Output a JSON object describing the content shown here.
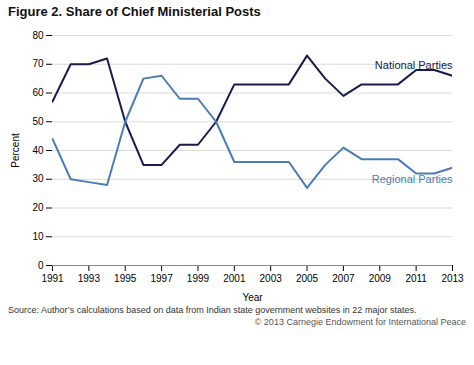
{
  "chart_data": {
    "type": "line",
    "title": "Figure 2. Share of Chief Ministerial Posts",
    "x": [
      1991,
      1992,
      1993,
      1994,
      1995,
      1996,
      1997,
      1998,
      1999,
      2000,
      2001,
      2002,
      2003,
      2004,
      2005,
      2006,
      2007,
      2008,
      2009,
      2010,
      2011,
      2012,
      2013
    ],
    "series": [
      {
        "name": "National Parties",
        "color": "#1a1a4e",
        "values": [
          57,
          70,
          70,
          72,
          50,
          35,
          35,
          42,
          42,
          50,
          63,
          63,
          63,
          63,
          73,
          65,
          59,
          63,
          63,
          63,
          68,
          68,
          66
        ]
      },
      {
        "name": "Regional Parties",
        "color": "#4a7db5",
        "values": [
          44,
          30,
          29,
          28,
          50,
          65,
          66,
          58,
          58,
          50,
          36,
          36,
          36,
          36,
          27,
          35,
          41,
          37,
          37,
          37,
          32,
          32,
          34
        ]
      }
    ],
    "xlabel": "Year",
    "ylabel": "Percent",
    "xlim": [
      1991,
      2013
    ],
    "xticks": [
      1991,
      1993,
      1995,
      1997,
      1999,
      2001,
      2003,
      2005,
      2007,
      2009,
      2011,
      2013
    ],
    "ylim": [
      0,
      80
    ],
    "yticks": [
      0,
      10,
      20,
      30,
      40,
      50,
      60,
      70,
      80
    ],
    "grid": true,
    "annotations": [
      "Source: Author’s calculations based on data from Indian state government websites in 22 major states.",
      "© 2013 Carnegie Endowment for International Peace"
    ]
  }
}
